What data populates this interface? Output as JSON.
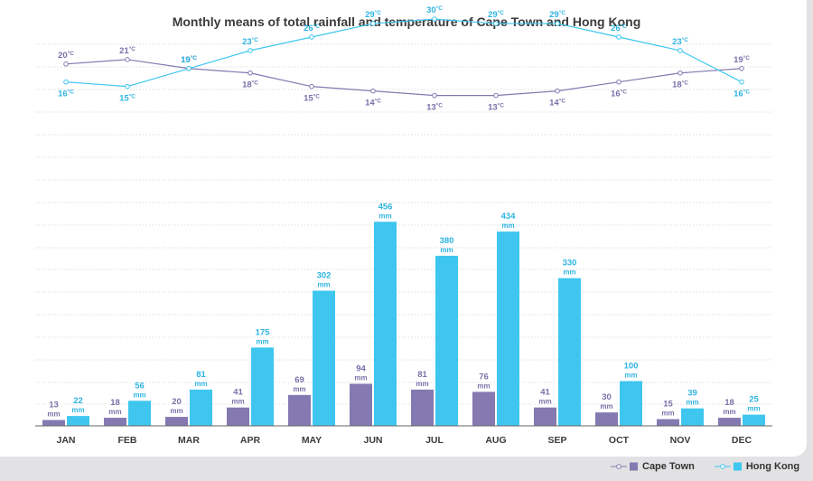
{
  "title": "Monthly means of total rainfall and temperature of Cape Town and Hong Kong",
  "colors": {
    "cape_town": "#8479b0",
    "hong_kong": "#3ec6ef",
    "cape_town_bar": "#8479b0",
    "hong_kong_bar": "#3ec6ef",
    "grid": "#d4d4d4",
    "text": "#3b3b3b",
    "cape_label": "#7a70a8",
    "hong_label": "#2fb4e2"
  },
  "legend": {
    "position": "bottom-right",
    "items": [
      {
        "name": "Cape Town",
        "marker": "line-circle-square",
        "color": "#8479b0"
      },
      {
        "name": "Hong Kong",
        "marker": "line-circle-square",
        "color": "#3ec6ef"
      }
    ]
  },
  "chart_data": [
    {
      "type": "line",
      "title": "Monthly means of total rainfall and temperature of Cape Town and Hong Kong",
      "categories": [
        "JAN",
        "FEB",
        "MAR",
        "APR",
        "MAY",
        "JUN",
        "JUL",
        "AUG",
        "SEP",
        "OCT",
        "NOV",
        "DEC"
      ],
      "unit": "°C",
      "grid": true,
      "series": [
        {
          "name": "Cape Town",
          "values": [
            20,
            21,
            19,
            18,
            15,
            14,
            13,
            13,
            14,
            16,
            18,
            19
          ]
        },
        {
          "name": "Hong Kong",
          "values": [
            16,
            15,
            19,
            23,
            26,
            29,
            30,
            29,
            29,
            26,
            23,
            16
          ]
        }
      ]
    },
    {
      "type": "bar",
      "categories": [
        "JAN",
        "FEB",
        "MAR",
        "APR",
        "MAY",
        "JUN",
        "JUL",
        "AUG",
        "SEP",
        "OCT",
        "NOV",
        "DEC"
      ],
      "unit": "mm",
      "ylim": [
        0,
        500
      ],
      "grid": true,
      "series": [
        {
          "name": "Cape Town",
          "values": [
            13,
            18,
            20,
            41,
            69,
            94,
            81,
            76,
            41,
            30,
            15,
            18
          ]
        },
        {
          "name": "Hong Kong",
          "values": [
            22,
            56,
            81,
            175,
            302,
            456,
            380,
            434,
            330,
            100,
            39,
            25
          ]
        }
      ]
    }
  ]
}
